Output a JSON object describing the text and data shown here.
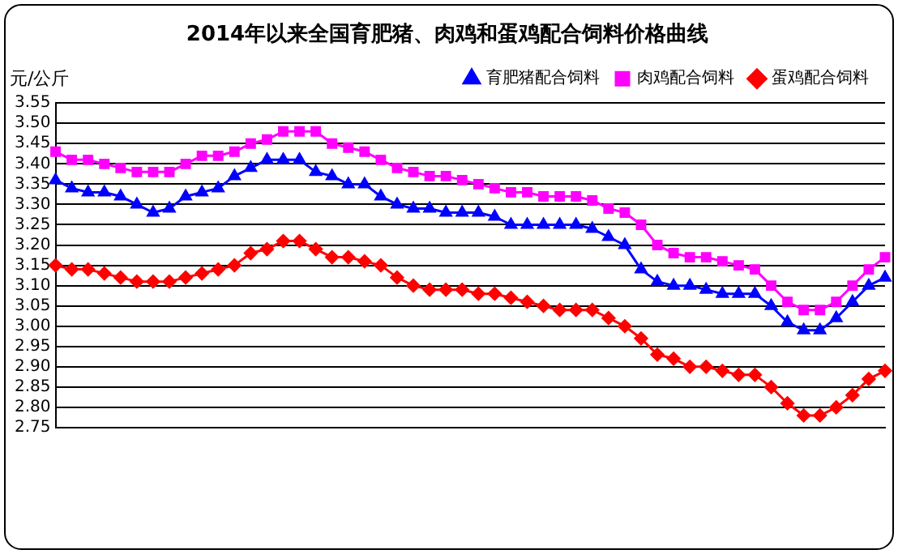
{
  "chart_data": {
    "type": "line",
    "title": "2014年以来全国育肥猪、肉鸡和蛋鸡配合饲料价格曲线",
    "ylabel": "元/公斤",
    "categories": [
      null,
      null,
      null,
      null,
      null,
      null,
      null,
      null,
      null,
      null,
      null,
      null,
      null,
      null,
      null,
      null,
      null,
      null,
      null,
      null,
      null,
      null,
      null,
      null,
      null,
      null,
      null,
      null,
      null,
      null,
      null,
      null,
      null,
      null,
      null,
      null,
      null,
      null,
      null,
      null,
      null,
      null,
      null,
      null,
      null,
      null,
      null,
      null,
      null,
      null,
      null,
      null
    ],
    "series": [
      {
        "name": "育肥猪配合饲料",
        "color": "#0000ff",
        "marker": "triangle",
        "values": [
          3.36,
          3.34,
          3.33,
          3.33,
          3.32,
          3.3,
          3.28,
          3.29,
          3.32,
          3.33,
          3.34,
          3.37,
          3.39,
          3.41,
          3.41,
          3.41,
          3.38,
          3.37,
          3.35,
          3.35,
          3.32,
          3.3,
          3.29,
          3.29,
          3.28,
          3.28,
          3.28,
          3.27,
          3.25,
          3.25,
          3.25,
          3.25,
          3.25,
          3.24,
          3.22,
          3.2,
          3.14,
          3.11,
          3.1,
          3.1,
          3.09,
          3.08,
          3.08,
          3.08,
          3.05,
          3.01,
          2.99,
          2.99,
          3.02,
          3.06,
          3.1,
          3.12
        ]
      },
      {
        "name": "肉鸡配合饲料",
        "color": "#ff00ff",
        "marker": "square",
        "values": [
          3.43,
          3.41,
          3.41,
          3.4,
          3.39,
          3.38,
          3.38,
          3.38,
          3.4,
          3.42,
          3.42,
          3.43,
          3.45,
          3.46,
          3.48,
          3.48,
          3.48,
          3.45,
          3.44,
          3.43,
          3.41,
          3.39,
          3.38,
          3.37,
          3.37,
          3.36,
          3.35,
          3.34,
          3.33,
          3.33,
          3.32,
          3.32,
          3.32,
          3.31,
          3.29,
          3.28,
          3.25,
          3.2,
          3.18,
          3.17,
          3.17,
          3.16,
          3.15,
          3.14,
          3.1,
          3.06,
          3.04,
          3.04,
          3.06,
          3.1,
          3.14,
          3.17
        ]
      },
      {
        "name": "蛋鸡配合饲料",
        "color": "#ff0000",
        "marker": "diamond",
        "values": [
          3.15,
          3.14,
          3.14,
          3.13,
          3.12,
          3.11,
          3.11,
          3.11,
          3.12,
          3.13,
          3.14,
          3.15,
          3.18,
          3.19,
          3.21,
          3.21,
          3.19,
          3.17,
          3.17,
          3.16,
          3.15,
          3.12,
          3.1,
          3.09,
          3.09,
          3.09,
          3.08,
          3.08,
          3.07,
          3.06,
          3.05,
          3.04,
          3.04,
          3.04,
          3.02,
          3.0,
          2.97,
          2.93,
          2.92,
          2.9,
          2.9,
          2.89,
          2.88,
          2.88,
          2.85,
          2.81,
          2.78,
          2.78,
          2.8,
          2.83,
          2.87,
          2.89
        ]
      }
    ],
    "ylim": [
      2.75,
      3.55
    ],
    "yticks": [
      {
        "value": 2.75,
        "label": "2.75"
      },
      {
        "value": 2.8,
        "label": "2.80"
      },
      {
        "value": 2.85,
        "label": "2.85"
      },
      {
        "value": 2.9,
        "label": "2.90"
      },
      {
        "value": 2.95,
        "label": "2.95"
      },
      {
        "value": 3.0,
        "label": "3.00"
      },
      {
        "value": 3.05,
        "label": "3.05"
      },
      {
        "value": 3.1,
        "label": "3.10"
      },
      {
        "value": 3.15,
        "label": "3.15"
      },
      {
        "value": 3.2,
        "label": "3.20"
      },
      {
        "value": 3.25,
        "label": "3.25"
      },
      {
        "value": 3.3,
        "label": "3.30"
      },
      {
        "value": 3.35,
        "label": "3.35"
      },
      {
        "value": 3.4,
        "label": "3.40"
      },
      {
        "value": 3.45,
        "label": "3.45"
      },
      {
        "value": 3.5,
        "label": "3.50"
      },
      {
        "value": 3.55,
        "label": "3.55"
      }
    ],
    "grid": "y",
    "legend": "top right",
    "tick_labels": "y",
    "line_style": "solid"
  }
}
